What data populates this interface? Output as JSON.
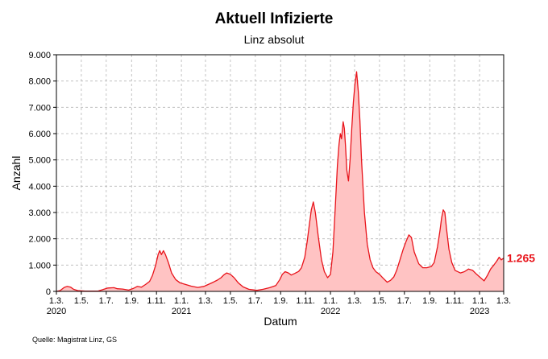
{
  "chart_data": {
    "type": "area",
    "title": "Aktuell Infizierte",
    "subtitle": "Linz absolut",
    "xlabel": "Datum",
    "ylabel": "Anzahl",
    "source": "Quelle: Magistrat Linz, GS",
    "ylim": [
      0,
      9000
    ],
    "xlim": [
      "2020-03-01",
      "2023-03-01"
    ],
    "y_ticks": [
      {
        "value": 0,
        "label": "0"
      },
      {
        "value": 1000,
        "label": "1.000"
      },
      {
        "value": 2000,
        "label": "2.000"
      },
      {
        "value": 3000,
        "label": "3.000"
      },
      {
        "value": 4000,
        "label": "4.000"
      },
      {
        "value": 5000,
        "label": "5.000"
      },
      {
        "value": 6000,
        "label": "6.000"
      },
      {
        "value": 7000,
        "label": "7.000"
      },
      {
        "value": 8000,
        "label": "8.000"
      },
      {
        "value": 9000,
        "label": "9.000"
      }
    ],
    "x_ticks": [
      {
        "date": "2020-03-01",
        "label": "1.3.",
        "year": "2020"
      },
      {
        "date": "2020-05-01",
        "label": "1.5.",
        "year": ""
      },
      {
        "date": "2020-07-01",
        "label": "1.7.",
        "year": ""
      },
      {
        "date": "2020-09-01",
        "label": "1.9.",
        "year": ""
      },
      {
        "date": "2020-11-01",
        "label": "1.11.",
        "year": ""
      },
      {
        "date": "2021-01-01",
        "label": "1.1.",
        "year": "2021"
      },
      {
        "date": "2021-03-01",
        "label": "1.3.",
        "year": ""
      },
      {
        "date": "2021-05-01",
        "label": "1.5.",
        "year": ""
      },
      {
        "date": "2021-07-01",
        "label": "1.7.",
        "year": ""
      },
      {
        "date": "2021-09-01",
        "label": "1.9.",
        "year": ""
      },
      {
        "date": "2021-11-01",
        "label": "1.11.",
        "year": ""
      },
      {
        "date": "2022-01-01",
        "label": "1.1.",
        "year": "2022"
      },
      {
        "date": "2022-03-01",
        "label": "1.3.",
        "year": ""
      },
      {
        "date": "2022-05-01",
        "label": "1.5.",
        "year": ""
      },
      {
        "date": "2022-07-01",
        "label": "1.7.",
        "year": ""
      },
      {
        "date": "2022-09-01",
        "label": "1.9.",
        "year": ""
      },
      {
        "date": "2022-11-01",
        "label": "1.11.",
        "year": ""
      },
      {
        "date": "2023-01-01",
        "label": "1.1.",
        "year": "2023"
      },
      {
        "date": "2023-03-01",
        "label": "1.3.",
        "year": ""
      }
    ],
    "grid": true,
    "line_color": "#e8141b",
    "fill_color": "#ffc3c3",
    "last_value_label": "1.265",
    "series": [
      {
        "points": [
          [
            "2020-03-01",
            0
          ],
          [
            "2020-03-10",
            30
          ],
          [
            "2020-03-20",
            150
          ],
          [
            "2020-03-27",
            190
          ],
          [
            "2020-04-05",
            160
          ],
          [
            "2020-04-12",
            80
          ],
          [
            "2020-04-22",
            30
          ],
          [
            "2020-05-10",
            10
          ],
          [
            "2020-06-10",
            10
          ],
          [
            "2020-06-25",
            80
          ],
          [
            "2020-07-05",
            130
          ],
          [
            "2020-07-20",
            140
          ],
          [
            "2020-07-28",
            100
          ],
          [
            "2020-08-10",
            90
          ],
          [
            "2020-08-25",
            50
          ],
          [
            "2020-09-05",
            110
          ],
          [
            "2020-09-15",
            190
          ],
          [
            "2020-09-25",
            160
          ],
          [
            "2020-10-05",
            260
          ],
          [
            "2020-10-15",
            380
          ],
          [
            "2020-10-22",
            600
          ],
          [
            "2020-10-30",
            1000
          ],
          [
            "2020-11-05",
            1400
          ],
          [
            "2020-11-09",
            1550
          ],
          [
            "2020-11-13",
            1400
          ],
          [
            "2020-11-18",
            1550
          ],
          [
            "2020-11-23",
            1400
          ],
          [
            "2020-11-30",
            1100
          ],
          [
            "2020-12-08",
            700
          ],
          [
            "2020-12-18",
            450
          ],
          [
            "2020-12-28",
            330
          ],
          [
            "2021-01-10",
            270
          ],
          [
            "2021-01-25",
            200
          ],
          [
            "2021-02-10",
            150
          ],
          [
            "2021-02-25",
            190
          ],
          [
            "2021-03-10",
            280
          ],
          [
            "2021-03-20",
            350
          ],
          [
            "2021-03-30",
            430
          ],
          [
            "2021-04-08",
            520
          ],
          [
            "2021-04-15",
            630
          ],
          [
            "2021-04-22",
            700
          ],
          [
            "2021-05-01",
            650
          ],
          [
            "2021-05-10",
            520
          ],
          [
            "2021-05-20",
            330
          ],
          [
            "2021-06-01",
            170
          ],
          [
            "2021-06-15",
            80
          ],
          [
            "2021-07-05",
            40
          ],
          [
            "2021-07-20",
            80
          ],
          [
            "2021-08-05",
            140
          ],
          [
            "2021-08-20",
            220
          ],
          [
            "2021-08-30",
            450
          ],
          [
            "2021-09-05",
            650
          ],
          [
            "2021-09-12",
            750
          ],
          [
            "2021-09-20",
            700
          ],
          [
            "2021-09-27",
            620
          ],
          [
            "2021-10-05",
            680
          ],
          [
            "2021-10-15",
            760
          ],
          [
            "2021-10-22",
            900
          ],
          [
            "2021-10-30",
            1300
          ],
          [
            "2021-11-05",
            1900
          ],
          [
            "2021-11-10",
            2500
          ],
          [
            "2021-11-15",
            3100
          ],
          [
            "2021-11-20",
            3400
          ],
          [
            "2021-11-25",
            3000
          ],
          [
            "2021-12-02",
            2100
          ],
          [
            "2021-12-10",
            1200
          ],
          [
            "2021-12-17",
            750
          ],
          [
            "2021-12-25",
            520
          ],
          [
            "2022-01-01",
            650
          ],
          [
            "2022-01-07",
            1500
          ],
          [
            "2022-01-12",
            3000
          ],
          [
            "2022-01-18",
            4800
          ],
          [
            "2022-01-22",
            5600
          ],
          [
            "2022-01-25",
            6000
          ],
          [
            "2022-01-28",
            5800
          ],
          [
            "2022-02-01",
            6450
          ],
          [
            "2022-02-04",
            6200
          ],
          [
            "2022-02-07",
            5500
          ],
          [
            "2022-02-10",
            4600
          ],
          [
            "2022-02-14",
            4200
          ],
          [
            "2022-02-18",
            5000
          ],
          [
            "2022-02-22",
            6200
          ],
          [
            "2022-02-26",
            7200
          ],
          [
            "2022-03-02",
            7900
          ],
          [
            "2022-03-06",
            8350
          ],
          [
            "2022-03-10",
            7600
          ],
          [
            "2022-03-14",
            6500
          ],
          [
            "2022-03-18",
            5000
          ],
          [
            "2022-03-25",
            3000
          ],
          [
            "2022-04-01",
            1800
          ],
          [
            "2022-04-08",
            1200
          ],
          [
            "2022-04-15",
            900
          ],
          [
            "2022-04-22",
            750
          ],
          [
            "2022-05-01",
            650
          ],
          [
            "2022-05-10",
            500
          ],
          [
            "2022-05-20",
            350
          ],
          [
            "2022-05-28",
            420
          ],
          [
            "2022-06-05",
            550
          ],
          [
            "2022-06-12",
            800
          ],
          [
            "2022-06-20",
            1200
          ],
          [
            "2022-06-28",
            1600
          ],
          [
            "2022-07-05",
            1900
          ],
          [
            "2022-07-12",
            2150
          ],
          [
            "2022-07-18",
            2050
          ],
          [
            "2022-07-25",
            1500
          ],
          [
            "2022-08-05",
            1050
          ],
          [
            "2022-08-15",
            900
          ],
          [
            "2022-08-25",
            900
          ],
          [
            "2022-09-05",
            950
          ],
          [
            "2022-09-12",
            1100
          ],
          [
            "2022-09-20",
            1700
          ],
          [
            "2022-09-26",
            2300
          ],
          [
            "2022-09-30",
            2800
          ],
          [
            "2022-10-04",
            3100
          ],
          [
            "2022-10-08",
            3000
          ],
          [
            "2022-10-12",
            2400
          ],
          [
            "2022-10-18",
            1600
          ],
          [
            "2022-10-25",
            1100
          ],
          [
            "2022-11-02",
            800
          ],
          [
            "2022-11-15",
            700
          ],
          [
            "2022-11-25",
            750
          ],
          [
            "2022-12-05",
            850
          ],
          [
            "2022-12-15",
            800
          ],
          [
            "2022-12-25",
            650
          ],
          [
            "2023-01-05",
            500
          ],
          [
            "2023-01-12",
            400
          ],
          [
            "2023-01-20",
            600
          ],
          [
            "2023-01-28",
            850
          ],
          [
            "2023-02-05",
            1000
          ],
          [
            "2023-02-12",
            1150
          ],
          [
            "2023-02-18",
            1300
          ],
          [
            "2023-02-23",
            1200
          ],
          [
            "2023-03-01",
            1265
          ]
        ]
      }
    ]
  }
}
